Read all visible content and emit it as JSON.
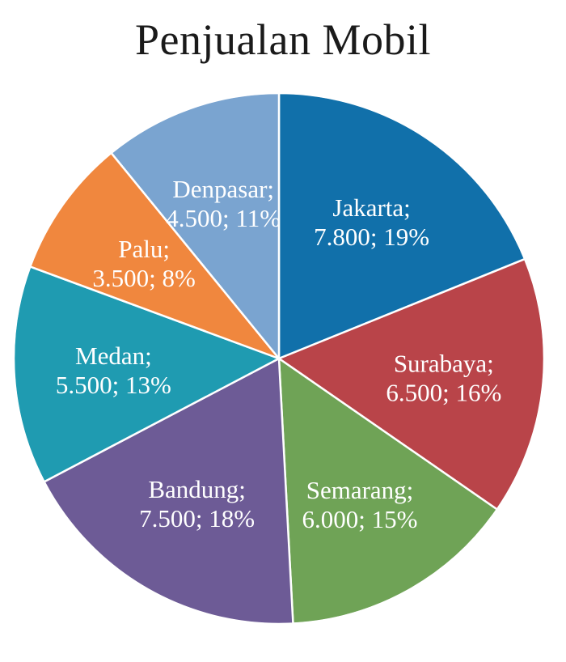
{
  "chart_data": {
    "type": "pie",
    "title": "Penjualan Mobil",
    "slices": [
      {
        "label": "Jakarta",
        "value": 7800,
        "value_text": "7.800",
        "percent_text": "19%",
        "color": "#1170aa"
      },
      {
        "label": "Surabaya",
        "value": 6500,
        "value_text": "6.500",
        "percent_text": "16%",
        "color": "#b94449"
      },
      {
        "label": "Semarang",
        "value": 6000,
        "value_text": "6.000",
        "percent_text": "15%",
        "color": "#6fa356"
      },
      {
        "label": "Bandung",
        "value": 7500,
        "value_text": "7.500",
        "percent_text": "18%",
        "color": "#6d5b96"
      },
      {
        "label": "Medan",
        "value": 5500,
        "value_text": "5.500",
        "percent_text": "13%",
        "color": "#1f9bb1"
      },
      {
        "label": "Palu",
        "value": 3500,
        "value_text": "3.500",
        "percent_text": "8%",
        "color": "#f0873e"
      },
      {
        "label": "Denpasar",
        "value": 4500,
        "value_text": "4.500",
        "percent_text": "11%",
        "color": "#7aa4d0"
      }
    ],
    "legend": "none",
    "start_angle": "12 o'clock",
    "direction": "clockwise"
  }
}
